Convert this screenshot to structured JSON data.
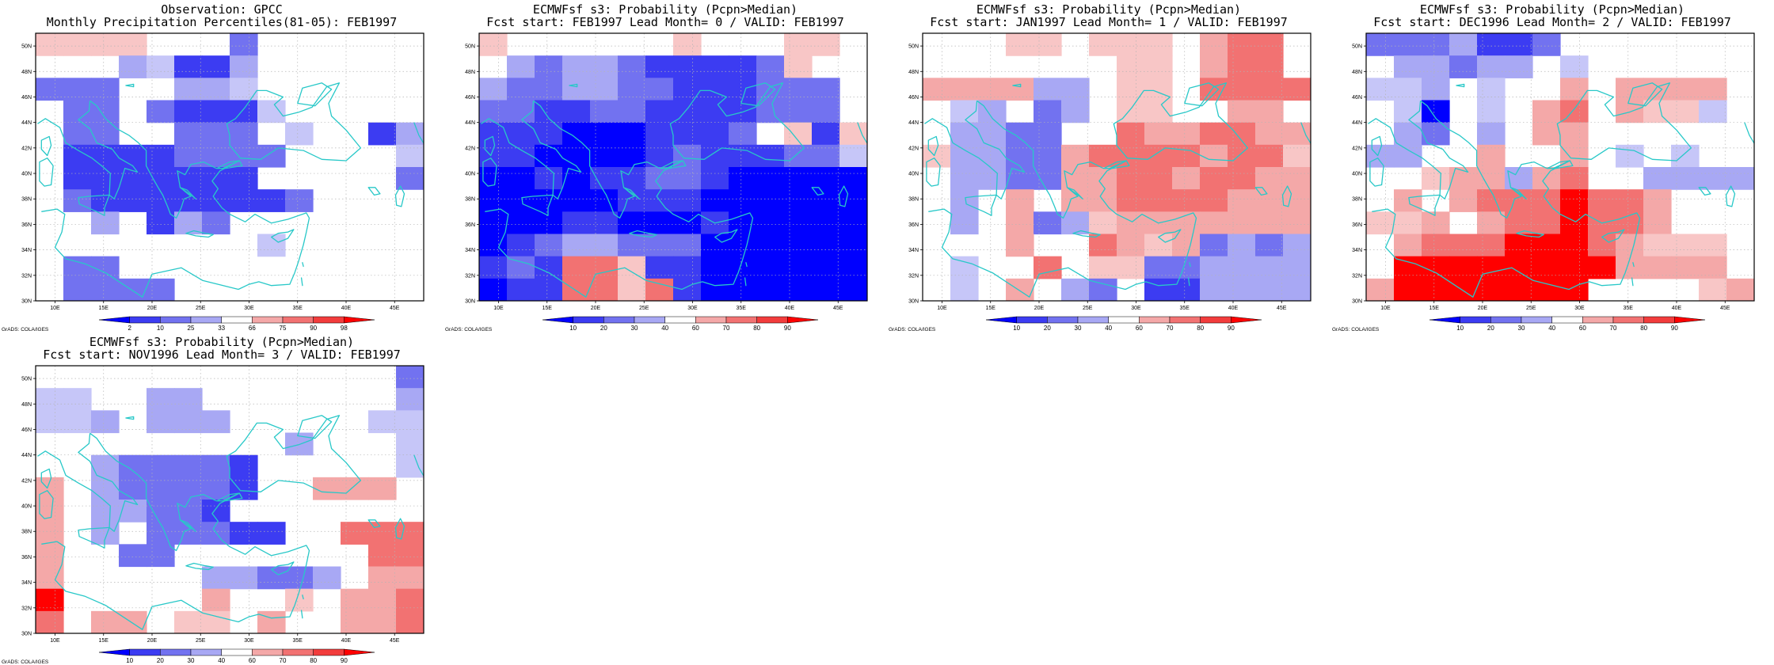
{
  "credit": "GrADS: COLA/IGES",
  "lon_ticks": [
    "10E",
    "15E",
    "20E",
    "25E",
    "30E",
    "35E",
    "40E",
    "45E"
  ],
  "lat_ticks": [
    "30N",
    "32N",
    "34N",
    "36N",
    "38N",
    "40N",
    "42N",
    "44N",
    "46N",
    "48N",
    "50N"
  ],
  "colors": {
    "coastline": "#28c8c8",
    "grid": "#b4b4b4",
    "very_wet": "#ff0000",
    "very_dry": "#0000ff"
  },
  "panels": [
    {
      "id": "obs",
      "title1": "Observation: GPCC",
      "title2": "Monthly Precipitation Percentiles(81-05): FEB1997",
      "colorbar": {
        "labels": [
          "2",
          "10",
          "25",
          "33",
          "66",
          "75",
          "90",
          "98"
        ],
        "colors": [
          "#0000ff",
          "#3c3cf2",
          "#7272f0",
          "#a8a8f4",
          "#ffffff",
          "#f4a8a8",
          "#f27272",
          "#f23c3c",
          "#ff0000"
        ]
      },
      "grid": [
        "dddd000C000000",
        "000BADDB000100",
        "CCC01BBA000000",
        "0CC0CDDDA08800",
        "0CC00CCC0A00DB",
        "0DDDDCCCC0000A",
        "0DDDDDDD00000C",
        "0CDDDDDDDC0000",
        "00B0DBC0000000",
        "00000000A99800",
        "0CC00800000000",
        "0CCCC000000000"
      ]
    },
    {
      "id": "lead0",
      "title1": "ECMWFsf s3: Probability (Pcpn>Median)",
      "title2": "Fcst start: FEB1997  Lead Month= 0 / VALID: FEB1997",
      "colorbar": {
        "labels": [
          "10",
          "20",
          "30",
          "40",
          "60",
          "70",
          "80",
          "90"
        ],
        "colors": [
          "#0000ff",
          "#3c3cf2",
          "#7272f0",
          "#a8a8f4",
          "#ffffff",
          "#f4a8a8",
          "#f27272",
          "#f23c3c",
          "#ff0000"
        ]
      },
      "grid": [
        "d000000d000dd0",
        "0BCBBCDDDDCd00",
        "BCCBBCCDDDCCC0",
        "CCDDCCDDDDCCC0",
        "DDDEEEDDDC0dDd",
        "DDEEEEDCDDDCCA",
        "EEDEDDCCDEEEEE",
        "EEEEEDDDEEEEEE",
        "EEEDDEEEDEEEEE",
        "EDCBBCCCEEEEEE",
        "DCDffdDDEEEEEE",
        "EDDffdfDEEEEEE"
      ]
    },
    {
      "id": "lead1",
      "title1": "ECMWFsf s3: Probability (Pcpn>Median)",
      "title2": "Fcst start: JAN1997  Lead Month= 1 / VALID: FEB1997",
      "colorbar": {
        "labels": [
          "10",
          "20",
          "30",
          "40",
          "60",
          "70",
          "80",
          "90"
        ],
        "colors": [
          "#0000ff",
          "#3c3cf2",
          "#7272f0",
          "#a8a8f4",
          "#ffffff",
          "#f4a8a8",
          "#f27272",
          "#f23c3c",
          "#ff0000"
        ]
      },
      "grid": [
        "000dd0ddd0eff0",
        "0000000dd0eff0",
        "eeeeBB0dd0ffff",
        "0AB0CB0dd00ee0",
        "0BBCC00feeffee",
        "dBBCCeffffeffd",
        "0BBCCeeffeffee",
        "0B0e0eeffffeee",
        "0B0eCBdeeeeeee",
        "000e00fedeCBCB",
        "0A00f0ddCCBBBB",
        "0A0e0BC0DDBBBB"
      ]
    },
    {
      "id": "lead2",
      "title1": "ECMWFsf s3: Probability (Pcpn>Median)",
      "title2": "Fcst start: DEC1996  Lead Month= 2 / VALID: FEB1997",
      "colorbar": {
        "labels": [
          "10",
          "20",
          "30",
          "40",
          "60",
          "70",
          "80",
          "90"
        ],
        "colors": [
          "#0000ff",
          "#3c3cf2",
          "#7272f0",
          "#a8a8f4",
          "#ffffff",
          "#f4a8a8",
          "#f27272",
          "#f23c3c",
          "#ff0000"
        ]
      },
      "grid": [
        "CCCBDDC0000000",
        "0BBCBB0A000000",
        "AAB0A00e0eeee0",
        "0AE0A0ef0eddA0",
        "0BC0B0ee000000",
        "BB00e00e0A0A00",
        "00deeBef00BBBB",
        "0e0efffgffe000",
        "dde0effgffe000",
        "0efffgggfeddd0",
        "0ggggggggeeee0",
        "eggggggg0000de"
      ]
    },
    {
      "id": "lead3",
      "title1": "ECMWFsf s3: Probability (Pcpn>Median)",
      "title2": "Fcst start: NOV1996  Lead Month= 3 / VALID: FEB1997",
      "colorbar": {
        "labels": [
          "10",
          "20",
          "30",
          "40",
          "60",
          "70",
          "80",
          "90"
        ],
        "colors": [
          "#0000ff",
          "#3c3cf2",
          "#7272f0",
          "#a8a8f4",
          "#ffffff",
          "#f4a8a8",
          "#f27272",
          "#f23c3c",
          "#ff0000"
        ]
      },
      "grid": [
        "0000000000000C",
        "AA00BB0000000B",
        "AAB0BBB00000AA",
        "000000000B000A",
        "00BCCCCD00000A",
        "e0BCCCCD00eee0",
        "e0BBCCD0000000",
        "e0B0CCCDD00fff",
        "e00CC0000000ff",
        "e00000BBCCB0ee",
        "g00000e00d0eef",
        "f0ee0dd0e00eef"
      ]
    }
  ]
}
